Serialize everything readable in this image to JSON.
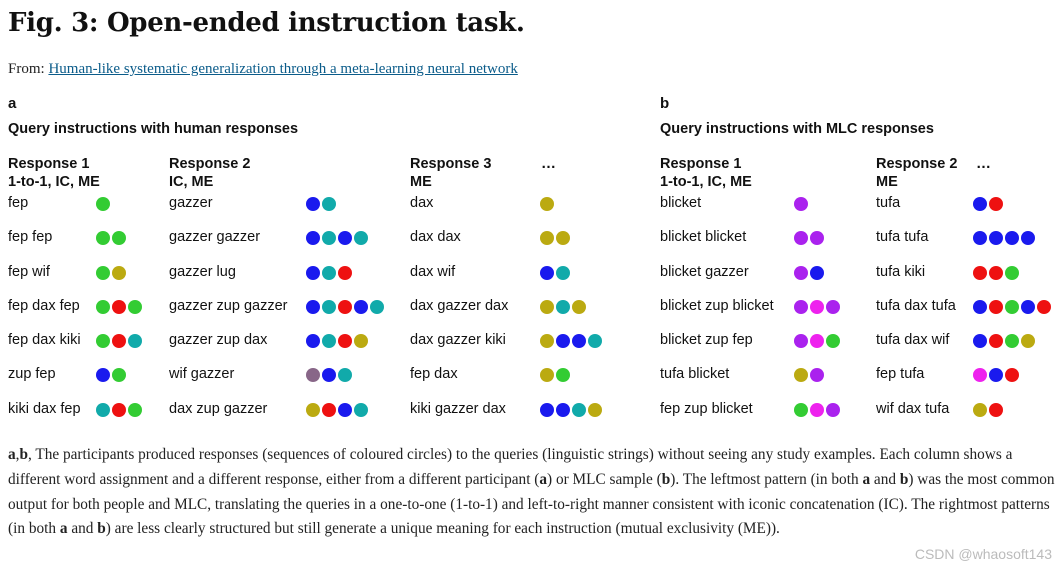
{
  "figure": {
    "title": "Fig. 3: Open-ended instruction task.",
    "from_prefix": "From: ",
    "from_link": "Human-like systematic generalization through a meta-learning neural network"
  },
  "colors": {
    "green": "#33cc33",
    "blue": "#1a1aee",
    "teal": "#11aaaa",
    "red": "#ee1111",
    "olive": "#bbaa11",
    "purple": "#aa22ee",
    "magenta": "#ee22ee",
    "grey": "#886688"
  },
  "panels": [
    {
      "letter": "a",
      "heading": "Query instructions with human responses",
      "columns": [
        {
          "head1": "Response 1",
          "head2": "1-to-1, IC, ME",
          "rows": [
            {
              "q": "fep",
              "dots": [
                "green"
              ]
            },
            {
              "q": "fep fep",
              "dots": [
                "green",
                "green"
              ]
            },
            {
              "q": "fep wif",
              "dots": [
                "green",
                "olive"
              ]
            },
            {
              "q": "fep dax fep",
              "dots": [
                "green",
                "red",
                "green"
              ]
            },
            {
              "q": "fep dax kiki",
              "dots": [
                "green",
                "red",
                "teal"
              ]
            },
            {
              "q": "zup fep",
              "dots": [
                "blue",
                "green"
              ]
            },
            {
              "q": "kiki dax fep",
              "dots": [
                "teal",
                "red",
                "green"
              ]
            }
          ]
        },
        {
          "head1": "Response 2",
          "head2": "IC, ME",
          "rows": [
            {
              "q": "gazzer",
              "dots": [
                "blue",
                "teal"
              ]
            },
            {
              "q": "gazzer gazzer",
              "dots": [
                "blue",
                "teal",
                "blue",
                "teal"
              ]
            },
            {
              "q": "gazzer lug",
              "dots": [
                "blue",
                "teal",
                "red"
              ]
            },
            {
              "q": "gazzer zup gazzer",
              "dots": [
                "blue",
                "teal",
                "red",
                "blue",
                "teal"
              ]
            },
            {
              "q": "gazzer zup dax",
              "dots": [
                "blue",
                "teal",
                "red",
                "olive"
              ]
            },
            {
              "q": "wif gazzer",
              "dots": [
                "grey",
                "blue",
                "teal"
              ]
            },
            {
              "q": "dax zup gazzer",
              "dots": [
                "olive",
                "red",
                "blue",
                "teal"
              ]
            }
          ]
        },
        {
          "head1": "Response 3",
          "head2": "ME",
          "rows": [
            {
              "q": "dax",
              "dots": [
                "olive"
              ]
            },
            {
              "q": "dax dax",
              "dots": [
                "olive",
                "olive"
              ]
            },
            {
              "q": "dax wif",
              "dots": [
                "blue",
                "teal"
              ]
            },
            {
              "q": "dax gazzer dax",
              "dots": [
                "olive",
                "teal",
                "olive"
              ]
            },
            {
              "q": "dax gazzer kiki",
              "dots": [
                "olive",
                "blue",
                "blue",
                "teal"
              ]
            },
            {
              "q": "fep dax",
              "dots": [
                "olive",
                "green"
              ]
            },
            {
              "q": "kiki gazzer dax",
              "dots": [
                "blue",
                "blue",
                "teal",
                "olive"
              ]
            }
          ]
        }
      ],
      "ellipsis": "…"
    },
    {
      "letter": "b",
      "heading": "Query instructions with MLC responses",
      "columns": [
        {
          "head1": "Response 1",
          "head2": "1-to-1, IC, ME",
          "rows": [
            {
              "q": "blicket",
              "dots": [
                "purple"
              ]
            },
            {
              "q": "blicket blicket",
              "dots": [
                "purple",
                "purple"
              ]
            },
            {
              "q": "blicket gazzer",
              "dots": [
                "purple",
                "blue"
              ]
            },
            {
              "q": "blicket zup blicket",
              "dots": [
                "purple",
                "magenta",
                "purple"
              ]
            },
            {
              "q": "blicket zup fep",
              "dots": [
                "purple",
                "magenta",
                "green"
              ]
            },
            {
              "q": "tufa blicket",
              "dots": [
                "olive",
                "purple"
              ]
            },
            {
              "q": "fep zup blicket",
              "dots": [
                "green",
                "magenta",
                "purple"
              ]
            }
          ]
        },
        {
          "head1": "Response 2",
          "head2": "ME",
          "rows": [
            {
              "q": "tufa",
              "dots": [
                "blue",
                "red"
              ]
            },
            {
              "q": "tufa tufa",
              "dots": [
                "blue",
                "blue",
                "blue",
                "blue"
              ]
            },
            {
              "q": "tufa kiki",
              "dots": [
                "red",
                "red",
                "green"
              ]
            },
            {
              "q": "tufa dax tufa",
              "dots": [
                "blue",
                "red",
                "green",
                "blue",
                "red"
              ]
            },
            {
              "q": "tufa dax wif",
              "dots": [
                "blue",
                "red",
                "green",
                "olive"
              ]
            },
            {
              "q": "fep tufa",
              "dots": [
                "magenta",
                "blue",
                "red"
              ]
            },
            {
              "q": "wif dax tufa",
              "dots": [
                "olive",
                "red"
              ]
            }
          ]
        }
      ],
      "ellipsis": "…"
    }
  ],
  "caption": {
    "parts": [
      {
        "t": "a",
        "b": true
      },
      {
        "t": ",",
        "b": false
      },
      {
        "t": "b",
        "b": true
      },
      {
        "t": ", The participants produced responses (sequences of coloured circles) to the queries (linguistic strings) without seeing any study examples. Each column shows a different word assignment and a different response, either from a different participant (",
        "b": false
      },
      {
        "t": "a",
        "b": true
      },
      {
        "t": ") or MLC sample (",
        "b": false
      },
      {
        "t": "b",
        "b": true
      },
      {
        "t": "). The leftmost pattern (in both ",
        "b": false
      },
      {
        "t": "a",
        "b": true
      },
      {
        "t": " and ",
        "b": false
      },
      {
        "t": "b",
        "b": true
      },
      {
        "t": ") was the most common output for both people and MLC, translating the queries in a one-to-one (1-to-1) and left-to-right manner consistent with iconic concatenation (IC). The rightmost patterns (in both ",
        "b": false
      },
      {
        "t": "a",
        "b": true
      },
      {
        "t": " and ",
        "b": false
      },
      {
        "t": "b",
        "b": true
      },
      {
        "t": ") are less clearly structured but still generate a unique meaning for each instruction (mutual exclusivity (ME)).",
        "b": false
      }
    ]
  },
  "watermark": "CSDN @whaosoft143"
}
